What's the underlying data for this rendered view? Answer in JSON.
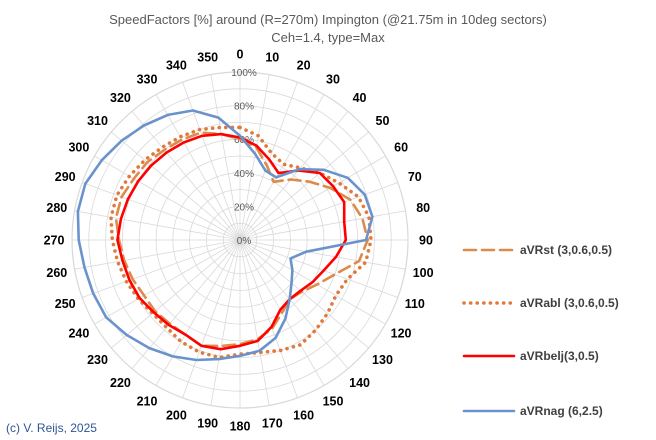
{
  "chart_data": {
    "type": "radar",
    "title": "SpeedFactors [%] around (R=270m) Impington (@21.75m in 10deg sectors)",
    "subtitle": "Ceh=1.4, type=Max",
    "copyright": "(c) V. Reijs, 2025",
    "angle_labels": [
      "0",
      "10",
      "20",
      "30",
      "40",
      "50",
      "60",
      "70",
      "80",
      "90",
      "100",
      "110",
      "120",
      "130",
      "140",
      "150",
      "160",
      "170",
      "180",
      "190",
      "200",
      "210",
      "220",
      "230",
      "240",
      "250",
      "260",
      "270",
      "280",
      "290",
      "300",
      "310",
      "320",
      "330",
      "340",
      "350"
    ],
    "radial_ticks": [
      {
        "value": 0,
        "label": "0%"
      },
      {
        "value": 20,
        "label": "20%"
      },
      {
        "value": 40,
        "label": "40%"
      },
      {
        "value": 60,
        "label": "60%"
      },
      {
        "value": 80,
        "label": "80%"
      },
      {
        "value": 100,
        "label": "100%"
      }
    ],
    "rmax": 100,
    "series": [
      {
        "name": "aVRst (3,0.6,0.5)",
        "color": "#dd8a4a",
        "style": "dash",
        "values": [
          60,
          56,
          47,
          40,
          47,
          54,
          62,
          70,
          74,
          76,
          72,
          60,
          53,
          48,
          46,
          50,
          56,
          60,
          62,
          64,
          67,
          65,
          65,
          66,
          66,
          68,
          70,
          72,
          75,
          75,
          73,
          72,
          70,
          69,
          68,
          64
        ]
      },
      {
        "name": "aVRabl (3,0.6,0.5)",
        "color": "#e07a3c",
        "style": "dot",
        "values": [
          67,
          63,
          55,
          52,
          56,
          62,
          68,
          75,
          78,
          78,
          76,
          68,
          66,
          68,
          70,
          72,
          70,
          68,
          68,
          71,
          71,
          70,
          68,
          68,
          70,
          72,
          74,
          76,
          78,
          78,
          76,
          74,
          72,
          71,
          70,
          68
        ]
      },
      {
        "name": "aVRbelj(3,0.5)",
        "color": "#ff0000",
        "style": "solid",
        "values": [
          61,
          57,
          51,
          46,
          54,
          62,
          64,
          66,
          63,
          63,
          58,
          53,
          50,
          47,
          46,
          48,
          55,
          61,
          63,
          66,
          67,
          65,
          66,
          67,
          69,
          70,
          71,
          73,
          72,
          71,
          70,
          69,
          68,
          67,
          66,
          64
        ]
      },
      {
        "name": "aVRnag (6,2.5)",
        "color": "#6a93cc",
        "style": "solid",
        "values": [
          62,
          52,
          44,
          43,
          55,
          65,
          74,
          79,
          80,
          75,
          40,
          32,
          36,
          40,
          46,
          54,
          62,
          67,
          69,
          72,
          76,
          80,
          84,
          88,
          92,
          93,
          94,
          96,
          98,
          98,
          95,
          92,
          89,
          86,
          82,
          74
        ]
      }
    ]
  }
}
